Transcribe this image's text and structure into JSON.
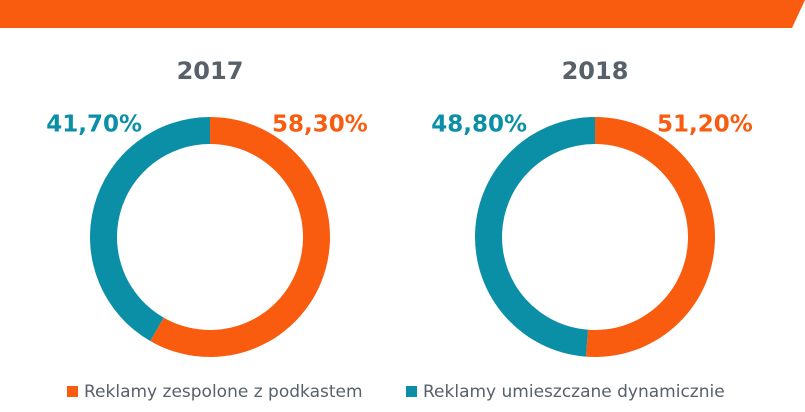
{
  "chart_data": [
    {
      "type": "pie",
      "title": "2017",
      "categories": [
        "Reklamy zespolone z podkastem",
        "Reklamy umieszczane dynamicznie"
      ],
      "values": [
        58.3,
        41.7
      ],
      "value_labels": [
        "58,30%",
        "41,70%"
      ],
      "colors": [
        "#f95c0f",
        "#0b8fa6"
      ],
      "legend": "bottom"
    },
    {
      "type": "pie",
      "title": "2018",
      "categories": [
        "Reklamy zespolone z podkastem",
        "Reklamy umieszczane dynamicznie"
      ],
      "values": [
        51.2,
        48.8
      ],
      "value_labels": [
        "51,20%",
        "48,80%"
      ],
      "colors": [
        "#f95c0f",
        "#0b8fa6"
      ]
    }
  ]
}
